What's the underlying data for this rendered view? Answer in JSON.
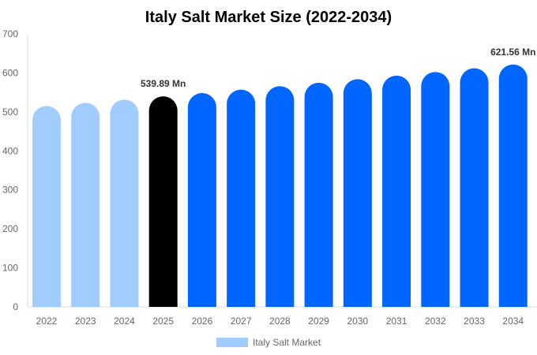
{
  "chart_data": {
    "type": "bar",
    "title": "Italy Salt Market Size (2022-2034)",
    "xlabel": "",
    "ylabel": "",
    "ylim": [
      0,
      700
    ],
    "yticks": [
      0,
      100,
      200,
      300,
      400,
      500,
      600,
      700
    ],
    "grid": false,
    "legend_position": "bottom",
    "categories": [
      "2022",
      "2023",
      "2024",
      "2025",
      "2026",
      "2027",
      "2028",
      "2029",
      "2030",
      "2031",
      "2032",
      "2033",
      "2034"
    ],
    "series": [
      {
        "name": "Italy Salt Market",
        "values": [
          515.2,
          523.3,
          531.5,
          539.89,
          548.4,
          557.1,
          565.9,
          574.8,
          583.9,
          593.1,
          602.4,
          611.9,
          621.56
        ],
        "colors": [
          "#a0cdfd",
          "#a0cdfd",
          "#a0cdfd",
          "#000000",
          "#0066ff",
          "#0066ff",
          "#0066ff",
          "#0066ff",
          "#0066ff",
          "#0066ff",
          "#0066ff",
          "#0066ff",
          "#0066ff"
        ]
      }
    ],
    "data_labels": [
      {
        "category": "2025",
        "text": "539.89 Mn"
      },
      {
        "category": "2034",
        "text": "621.56 Mn"
      }
    ],
    "legend_color": "#a0cdfd"
  }
}
